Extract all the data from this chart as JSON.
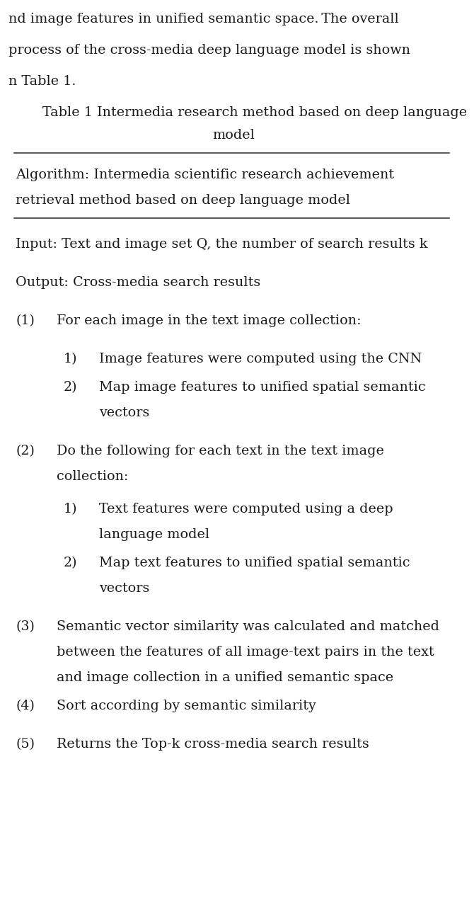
{
  "background_color": "#ffffff",
  "fig_width": 6.4,
  "fig_height": 12.51,
  "header_lines": [
    "nd image features in unified semantic space. The overall",
    "process of the cross-media deep language model is shown",
    "n Table 1."
  ],
  "table_title_line1": "Table 1 Intermedia research method based on deep language",
  "table_title_line2": "model",
  "algorithm_line1": "Algorithm: Intermedia scientific research achievement",
  "algorithm_line2": "retrieval method based on deep language model",
  "input_line": "Input: Text and image set Q, the number of search results k",
  "output_line": "Output: Cross-media search results",
  "font_size": 13.8,
  "font_color": "#1a1a1a",
  "line_color": "#2a2a2a",
  "indent_l1": 12,
  "indent_step_num": 12,
  "indent_step_text": 70,
  "indent_sub_num": 80,
  "indent_sub_text": 130
}
